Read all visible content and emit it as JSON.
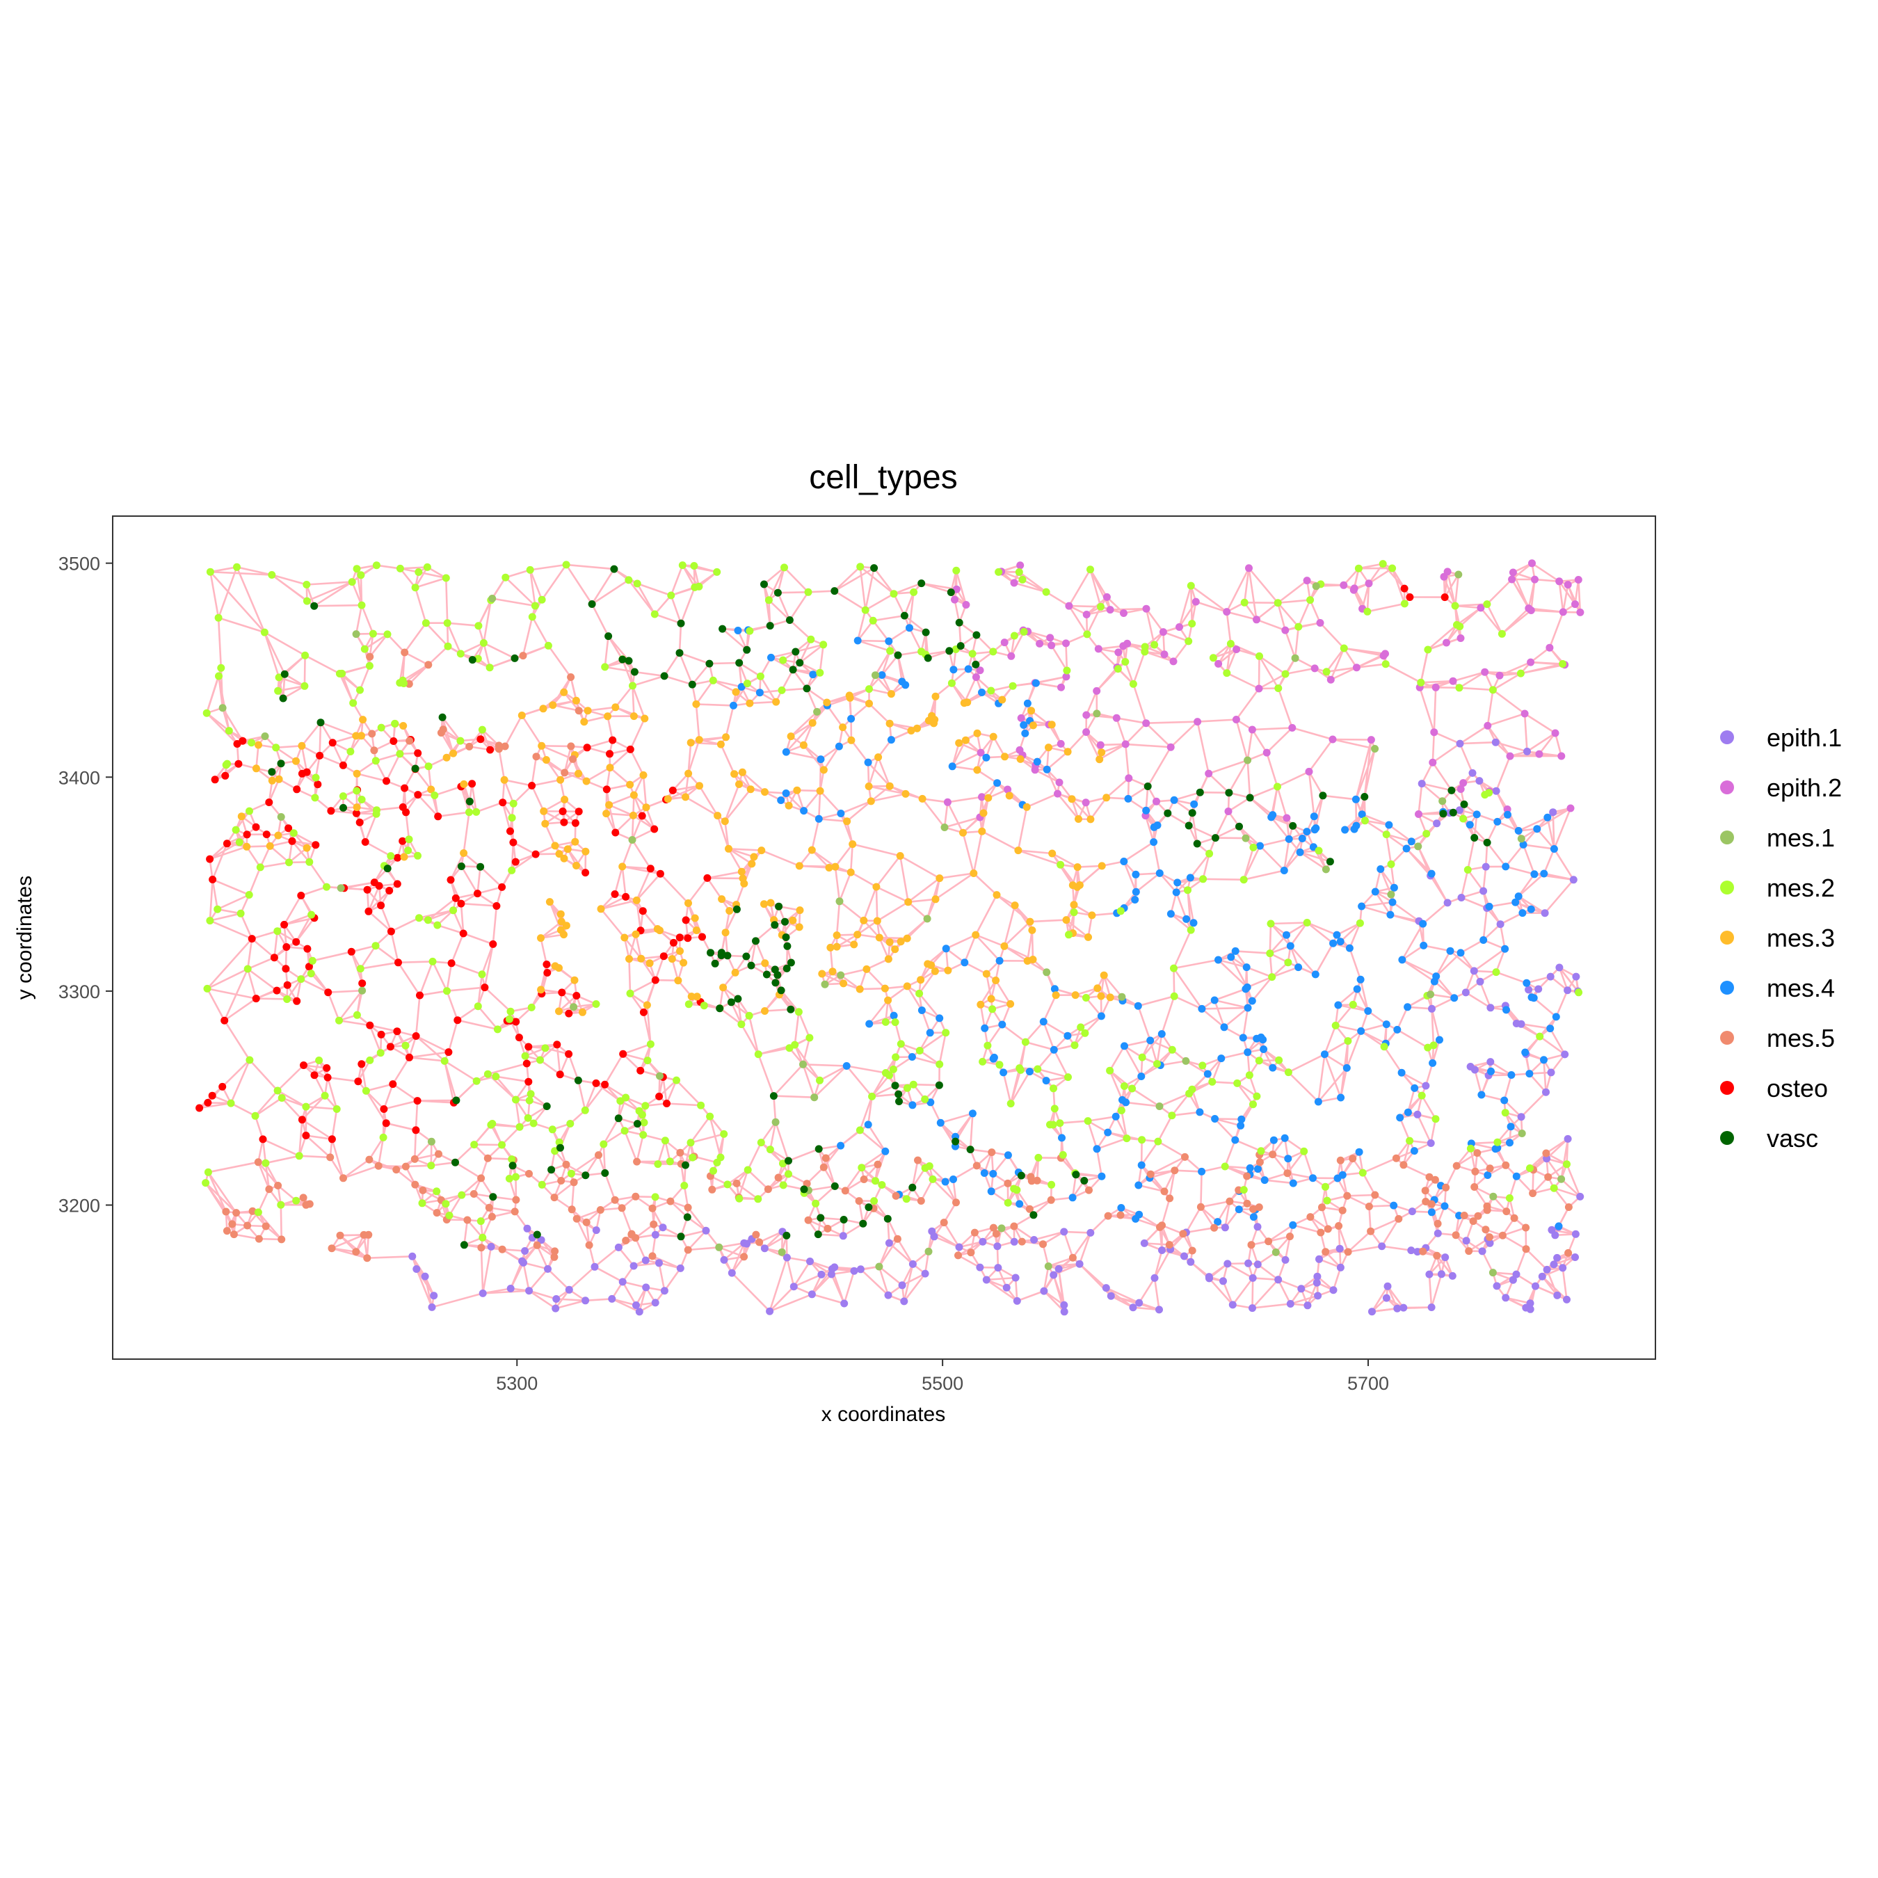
{
  "chart_data": {
    "type": "scatter",
    "title": "cell_types",
    "xlabel": "x coordinates",
    "ylabel": "y coordinates",
    "xlim": [
      5110,
      5835
    ],
    "ylim": [
      3128,
      3522
    ],
    "x_ticks": [
      5300,
      5500,
      5700
    ],
    "y_ticks": [
      3200,
      3300,
      3400,
      3500
    ],
    "grid": false,
    "legend_position": "right",
    "network_edge_color": "#FFB6C1",
    "legend": [
      {
        "name": "epith.1",
        "color": "#9E7CF0"
      },
      {
        "name": "epith.2",
        "color": "#D96DD9"
      },
      {
        "name": "mes.1",
        "color": "#9BC563"
      },
      {
        "name": "mes.2",
        "color": "#ADFF2F"
      },
      {
        "name": "mes.3",
        "color": "#FFBC2A"
      },
      {
        "name": "mes.4",
        "color": "#1E90FF"
      },
      {
        "name": "mes.5",
        "color": "#F08A6E"
      },
      {
        "name": "osteo",
        "color": "#FF0000"
      },
      {
        "name": "vasc",
        "color": "#006400"
      }
    ],
    "regions": [
      {
        "type": "osteo",
        "x": [
          5150,
          5390
        ],
        "y": [
          3230,
          3420
        ],
        "n": 170
      },
      {
        "type": "epith.1",
        "x": [
          5250,
          5800
        ],
        "y": [
          3150,
          3190
        ],
        "n": 150
      },
      {
        "type": "epith.1",
        "x": [
          5720,
          5800
        ],
        "y": [
          3150,
          3420
        ],
        "n": 60
      },
      {
        "type": "epith.2",
        "x": [
          5500,
          5800
        ],
        "y": [
          3440,
          3500
        ],
        "n": 80
      },
      {
        "type": "epith.2",
        "x": [
          5500,
          5800
        ],
        "y": [
          3380,
          3430
        ],
        "n": 50
      },
      {
        "type": "mes.4",
        "x": [
          5580,
          5790
        ],
        "y": [
          3190,
          3390
        ],
        "n": 190
      },
      {
        "type": "mes.4",
        "x": [
          5450,
          5580
        ],
        "y": [
          3200,
          3320
        ],
        "n": 45
      },
      {
        "type": "mes.4",
        "x": [
          5400,
          5560
        ],
        "y": [
          3380,
          3470
        ],
        "n": 40
      },
      {
        "type": "mes.3",
        "x": [
          5310,
          5580
        ],
        "y": [
          3290,
          3440
        ],
        "n": 230
      },
      {
        "type": "mes.3",
        "x": [
          5170,
          5330
        ],
        "y": [
          3360,
          3430
        ],
        "n": 30
      },
      {
        "type": "mes.5",
        "x": [
          5160,
          5800
        ],
        "y": [
          3175,
          3225
        ],
        "n": 200
      },
      {
        "type": "mes.5",
        "x": [
          5230,
          5330
        ],
        "y": [
          3400,
          3460
        ],
        "n": 20
      },
      {
        "type": "mes.2",
        "x": [
          5150,
          5800
        ],
        "y": [
          3440,
          3500
        ],
        "n": 130
      },
      {
        "type": "mes.2",
        "x": [
          5150,
          5300
        ],
        "y": [
          3180,
          3460
        ],
        "n": 110
      },
      {
        "type": "mes.2",
        "x": [
          5290,
          5580
        ],
        "y": [
          3200,
          3300
        ],
        "n": 120
      },
      {
        "type": "mes.2",
        "x": [
          5550,
          5800
        ],
        "y": [
          3200,
          3400
        ],
        "n": 80
      },
      {
        "type": "mes.1",
        "x": [
          5150,
          5800
        ],
        "y": [
          3160,
          3500
        ],
        "n": 50
      },
      {
        "type": "vasc",
        "x": [
          5390,
          5430
        ],
        "y": [
          3290,
          3340
        ],
        "n": 25
      },
      {
        "type": "vasc",
        "x": [
          5330,
          5520
        ],
        "y": [
          3440,
          3500
        ],
        "n": 35
      },
      {
        "type": "vasc",
        "x": [
          5270,
          5570
        ],
        "y": [
          3180,
          3260
        ],
        "n": 40
      },
      {
        "type": "vasc",
        "x": [
          5160,
          5310
        ],
        "y": [
          3350,
          3480
        ],
        "n": 15
      },
      {
        "type": "vasc",
        "x": [
          5580,
          5760
        ],
        "y": [
          3360,
          3400
        ],
        "n": 20
      },
      {
        "type": "osteo",
        "x": [
          5620,
          5740
        ],
        "y": [
          3480,
          3500
        ],
        "n": 3
      }
    ]
  }
}
